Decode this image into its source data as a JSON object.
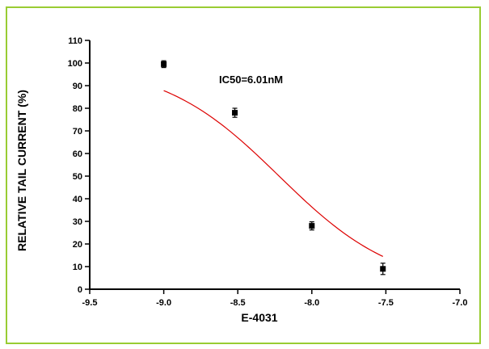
{
  "colors": {
    "frame_border": "#99cc33",
    "fit_curve": "#dd0000",
    "points": "#000000"
  },
  "chart_data": {
    "type": "scatter",
    "xlabel": "E-4031",
    "ylabel": "RELATIVE TAIL CURRENT (%)",
    "xlim": [
      -9.5,
      -7.0
    ],
    "ylim": [
      0,
      110
    ],
    "xticks": [
      -9.5,
      -9.0,
      -8.5,
      -8.0,
      -7.5,
      -7.0
    ],
    "xtick_labels": [
      "-9.5",
      "-9.0",
      "-8.5",
      "-8.0",
      "-7.5",
      "-7.0"
    ],
    "yticks": [
      0,
      10,
      20,
      30,
      40,
      50,
      60,
      70,
      80,
      90,
      100,
      110
    ],
    "ytick_labels": [
      "0",
      "10",
      "20",
      "30",
      "40",
      "50",
      "60",
      "70",
      "80",
      "90",
      "100",
      "110"
    ],
    "grid": false,
    "legend": null,
    "annotation": "IC50=6.01nM",
    "points": [
      {
        "x": -9.0,
        "y": 99.5,
        "err": 1.5
      },
      {
        "x": -8.52,
        "y": 78.0,
        "err": 2.0
      },
      {
        "x": -8.0,
        "y": 28.0,
        "err": 1.8
      },
      {
        "x": -7.52,
        "y": 9.0,
        "err": 2.5
      }
    ],
    "fit": {
      "model": "sigmoidal dose-response",
      "x_range": [
        -9.0,
        -7.52
      ],
      "top": 100,
      "bottom": 0,
      "log_ic50": -8.221,
      "hill_slope": 1.1
    }
  }
}
